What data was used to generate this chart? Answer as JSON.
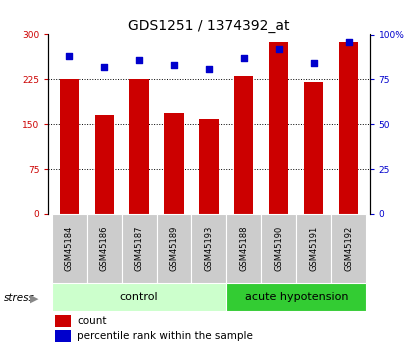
{
  "title": "GDS1251 / 1374392_at",
  "samples": [
    "GSM45184",
    "GSM45186",
    "GSM45187",
    "GSM45189",
    "GSM45193",
    "GSM45188",
    "GSM45190",
    "GSM45191",
    "GSM45192"
  ],
  "counts": [
    226,
    165,
    226,
    168,
    159,
    231,
    287,
    220,
    287
  ],
  "percentiles": [
    88,
    82,
    86,
    83,
    81,
    87,
    92,
    84,
    96
  ],
  "n_control": 5,
  "n_acute": 4,
  "control_label": "control",
  "acute_label": "acute hypotension",
  "stress_label": "stress",
  "ylim_left": [
    0,
    300
  ],
  "ylim_right": [
    0,
    100
  ],
  "yticks_left": [
    0,
    75,
    150,
    225,
    300
  ],
  "ytick_labels_left": [
    "0",
    "75",
    "150",
    "225",
    "300"
  ],
  "yticks_right": [
    0,
    25,
    50,
    75,
    100
  ],
  "ytick_labels_right": [
    "0",
    "25",
    "50",
    "75",
    "100%"
  ],
  "bar_color": "#cc0000",
  "dot_color": "#0000cc",
  "control_bg": "#ccffcc",
  "acute_bg": "#33cc33",
  "tick_bg": "#cccccc",
  "legend_count_label": "count",
  "legend_pct_label": "percentile rank within the sample",
  "bar_width": 0.55,
  "dot_size": 22,
  "title_fontsize": 10,
  "tick_fontsize": 6.5,
  "sample_fontsize": 6,
  "group_fontsize": 8,
  "legend_fontsize": 7.5
}
